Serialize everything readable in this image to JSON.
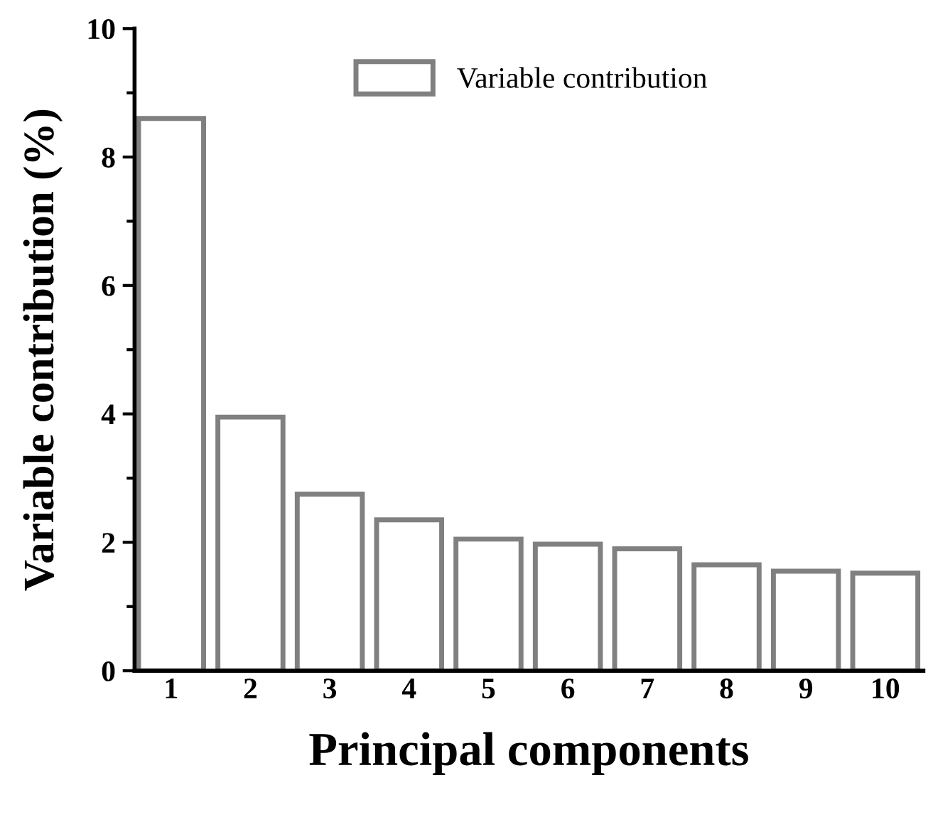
{
  "chart_data": {
    "type": "bar",
    "xlabel": "Principal components",
    "ylabel": "Variable contribution (%)",
    "categories": [
      "1",
      "2",
      "3",
      "4",
      "5",
      "6",
      "7",
      "8",
      "9",
      "10"
    ],
    "series": [
      {
        "name": "Variable contribution",
        "color": "#808080",
        "values": [
          8.6,
          3.95,
          2.75,
          2.35,
          2.05,
          1.97,
          1.9,
          1.65,
          1.55,
          1.52
        ]
      }
    ],
    "ylim": [
      0,
      10
    ],
    "yticks": [
      0,
      2,
      4,
      6,
      8,
      10
    ],
    "grid": false,
    "legend": "top right"
  }
}
